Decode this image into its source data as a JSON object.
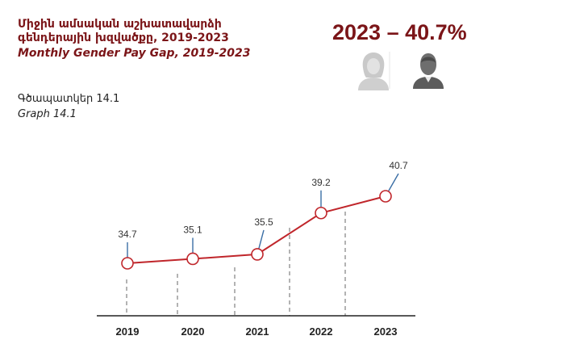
{
  "title_am": "Միջին ամսական աշխատավարձի գենդերային խզվածքը, 2019-2023",
  "title_en": "Monthly Gender Pay Gap, 2019-2023",
  "headline": "2023 – 40.7%",
  "graph_label_am": "Գծապատկեր 14.1",
  "graph_label_en": "Graph 14.1",
  "icons": [
    "female-avatar-icon",
    "male-avatar-icon"
  ],
  "colors": {
    "accent": "#7b1518",
    "line": "#c0262b",
    "marker": "#c0262b",
    "leader": "#3a6ea5"
  },
  "chart_data": {
    "type": "line",
    "categories": [
      "2019",
      "2020",
      "2021",
      "2022",
      "2023"
    ],
    "values": [
      34.7,
      35.1,
      35.5,
      39.2,
      40.7
    ],
    "labels": [
      "34.7",
      "35.1",
      "35.5",
      "39.2",
      "40.7"
    ],
    "title": "Monthly Gender Pay Gap, 2019-2023",
    "xlabel": "",
    "ylabel": "",
    "grid": false
  }
}
